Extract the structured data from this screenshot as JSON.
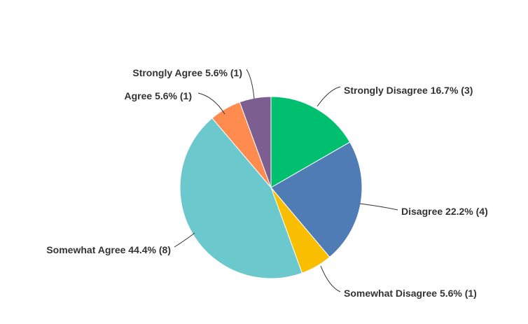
{
  "chart_data": {
    "type": "pie",
    "start": "top",
    "direction": "clockwise",
    "slices": [
      {
        "label": "Strongly Disagree",
        "percent": 16.7,
        "count": 3,
        "color": "#00BF6F",
        "text": "Strongly Disagree 16.7% (3)"
      },
      {
        "label": "Disagree",
        "percent": 22.2,
        "count": 4,
        "color": "#507CB6",
        "text": "Disagree 22.2% (4)"
      },
      {
        "label": "Somewhat Disagree",
        "percent": 5.6,
        "count": 1,
        "color": "#F9BE00",
        "text": "Somewhat Disagree 5.6% (1)"
      },
      {
        "label": "Somewhat Agree",
        "percent": 44.4,
        "count": 8,
        "color": "#6BC8CD",
        "text": "Somewhat Agree 44.4% (8)"
      },
      {
        "label": "Agree",
        "percent": 5.6,
        "count": 1,
        "color": "#FF8B4F",
        "text": "Agree 5.6% (1)"
      },
      {
        "label": "Strongly Agree",
        "percent": 5.6,
        "count": 1,
        "color": "#7D5E90",
        "text": "Strongly Agree 5.6% (1)"
      }
    ]
  }
}
